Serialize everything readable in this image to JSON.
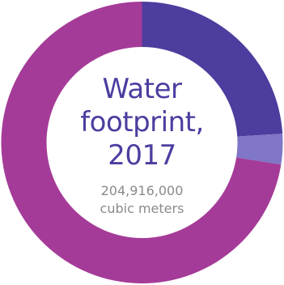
{
  "chart_data": {
    "type": "pie",
    "variant": "donut",
    "title_lines": [
      "Water",
      "footprint,",
      "2017"
    ],
    "subtitle_lines": [
      "204,916,000",
      "cubic meters"
    ],
    "segments": [
      {
        "value": 0.24,
        "color": "#4c3d9e"
      },
      {
        "value": 0.035,
        "color": "#7f76c7"
      },
      {
        "value": 0.725,
        "color": "#a53b98"
      }
    ]
  },
  "colors": {
    "title": "#4a3ea0",
    "subtitle": "#8a8a8a",
    "background": "#ffffff"
  }
}
